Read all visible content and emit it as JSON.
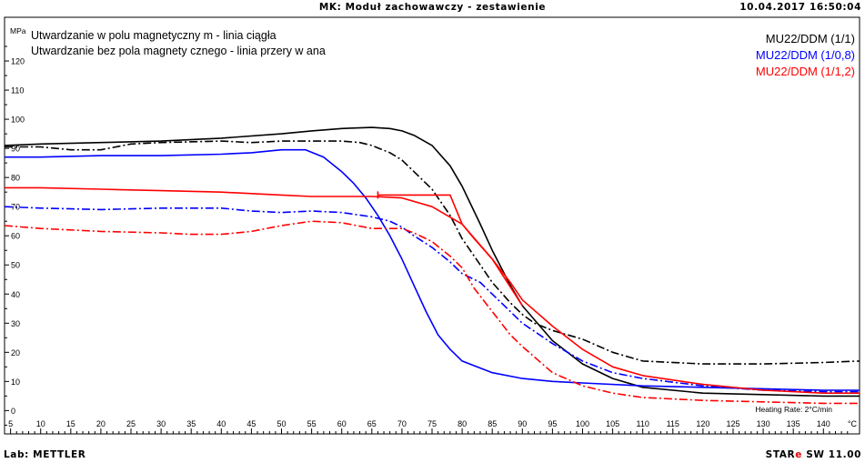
{
  "header": {
    "title": "MK: Moduł zachowawczy - zestawienie",
    "timestamp": "10.04.2017 16:50:04"
  },
  "footer": {
    "lab": "Lab: METTLER",
    "brand": "STAR",
    "brand_mark": "e",
    "version": "SW 11.00"
  },
  "chart_data": {
    "type": "line",
    "y_unit": "MPa",
    "x_unit": "°C",
    "xlim": [
      4,
      146
    ],
    "ylim": [
      -8,
      135
    ],
    "x_ticks": [
      5,
      10,
      15,
      20,
      25,
      30,
      35,
      40,
      45,
      50,
      55,
      60,
      65,
      70,
      75,
      80,
      85,
      90,
      95,
      100,
      105,
      110,
      115,
      120,
      125,
      130,
      135,
      140
    ],
    "y_ticks": [
      0,
      10,
      20,
      30,
      40,
      50,
      60,
      70,
      80,
      90,
      100,
      110,
      120
    ],
    "annotations": [
      "Utwardzanie w polu magnetyczny m - linia ciągła",
      "Utwardzanie bez pola magnety cznego - linia przery w ana"
    ],
    "note": "Heating Rate: 2°C/min",
    "legend_position": "top-right",
    "legend": [
      {
        "label": "MU22/DDM (1/1)",
        "color": "#000000"
      },
      {
        "label": "MU22/DDM (1/0,8)",
        "color": "#0000ff"
      },
      {
        "label": "MU22/DDM (1/1,2)",
        "color": "#ff0000"
      }
    ],
    "series": [
      {
        "name": "MU22/DDM (1/1)",
        "line": "solid",
        "color": "#000000",
        "x": [
          4,
          10,
          20,
          30,
          40,
          50,
          55,
          60,
          65,
          68,
          70,
          72,
          75,
          78,
          80,
          83,
          85,
          88,
          90,
          95,
          100,
          105,
          110,
          120,
          130,
          140,
          146
        ],
        "y": [
          91,
          91.5,
          92,
          92.5,
          93.5,
          95,
          96,
          96.8,
          97.2,
          96.8,
          96,
          94.5,
          91,
          84,
          77,
          64,
          55,
          43,
          36,
          24,
          16,
          11,
          8,
          6,
          5.5,
          5,
          5
        ]
      },
      {
        "name": "MU22/DDM (1/1)",
        "line": "dashdot",
        "color": "#000000",
        "x": [
          4,
          10,
          15,
          20,
          25,
          30,
          40,
          45,
          50,
          55,
          60,
          63,
          65,
          68,
          70,
          72,
          75,
          78,
          80,
          83,
          85,
          88,
          90,
          92,
          95,
          100,
          105,
          110,
          120,
          130,
          140,
          146
        ],
        "y": [
          90.5,
          90.5,
          89.5,
          89.5,
          91.5,
          92,
          92.5,
          92,
          92.5,
          92.5,
          92.5,
          92,
          91,
          88.5,
          86,
          82,
          76,
          67,
          59,
          50,
          44,
          37,
          33,
          30,
          27.5,
          24.5,
          20,
          17,
          16,
          16,
          16.5,
          17
        ]
      },
      {
        "name": "MU22/DDM (1/0,8)",
        "line": "solid",
        "color": "#0000ff",
        "x": [
          4,
          10,
          20,
          30,
          40,
          45,
          50,
          54,
          57,
          60,
          62,
          64,
          66,
          68,
          70,
          72,
          74,
          76,
          78,
          80,
          85,
          90,
          95,
          100,
          110,
          120,
          130,
          140,
          146
        ],
        "y": [
          87,
          87,
          87.5,
          87.5,
          88,
          88.5,
          89.5,
          89.5,
          87,
          82,
          78,
          73,
          67,
          60,
          52,
          43,
          34,
          26,
          21,
          17,
          13,
          11,
          10,
          9.5,
          8.5,
          8,
          7.5,
          7,
          7
        ]
      },
      {
        "name": "MU22/DDM (1/0,8)",
        "line": "dashdot",
        "color": "#0000ff",
        "x": [
          4,
          10,
          20,
          30,
          40,
          45,
          50,
          55,
          60,
          65,
          68,
          70,
          72,
          75,
          78,
          80,
          83,
          85,
          88,
          90,
          95,
          100,
          105,
          110,
          120,
          130,
          140,
          146
        ],
        "y": [
          70,
          69.5,
          69,
          69.5,
          69.5,
          68.5,
          68,
          68.5,
          68,
          66.5,
          65,
          63,
          60,
          56,
          51,
          47,
          44,
          40,
          34,
          30,
          23,
          17,
          13,
          11,
          8.5,
          7,
          6.5,
          6.5
        ]
      },
      {
        "name": "MU22/DDM (1/1,2)",
        "line": "solid",
        "color": "#ff0000",
        "x": [
          4,
          10,
          20,
          30,
          40,
          50,
          55,
          60,
          65,
          70,
          75,
          80,
          82,
          85,
          88,
          90,
          95,
          100,
          105,
          110,
          120,
          130,
          140,
          146
        ],
        "y": [
          76.5,
          76.5,
          76,
          75.5,
          75,
          74,
          73.5,
          73.5,
          73.5,
          73,
          70,
          64,
          59,
          52,
          44,
          38,
          29,
          21,
          15,
          12,
          9,
          7,
          6,
          6
        ]
      },
      {
        "name": "MU22/DDM (1/1,2)",
        "line": "solid",
        "color": "#ff0000",
        "x": [
          66,
          70,
          75,
          78,
          80,
          85,
          90
        ],
        "y": [
          74,
          74,
          74,
          74,
          64,
          52,
          36
        ]
      },
      {
        "name": "MU22/DDM (1/1,2)",
        "line": "dashdot",
        "color": "#ff0000",
        "x": [
          4,
          10,
          20,
          30,
          35,
          40,
          45,
          50,
          55,
          60,
          65,
          68,
          70,
          72,
          75,
          78,
          80,
          82,
          85,
          88,
          90,
          95,
          100,
          105,
          110,
          120,
          130,
          140,
          146
        ],
        "y": [
          63.5,
          62.5,
          61.5,
          61,
          60.5,
          60.5,
          61.5,
          63.5,
          65,
          64.5,
          62.5,
          62.5,
          62.5,
          61,
          58,
          53,
          49,
          42,
          34,
          26,
          22,
          13,
          8.5,
          6,
          4.5,
          3.5,
          3,
          2.5,
          2.5
        ]
      }
    ]
  }
}
